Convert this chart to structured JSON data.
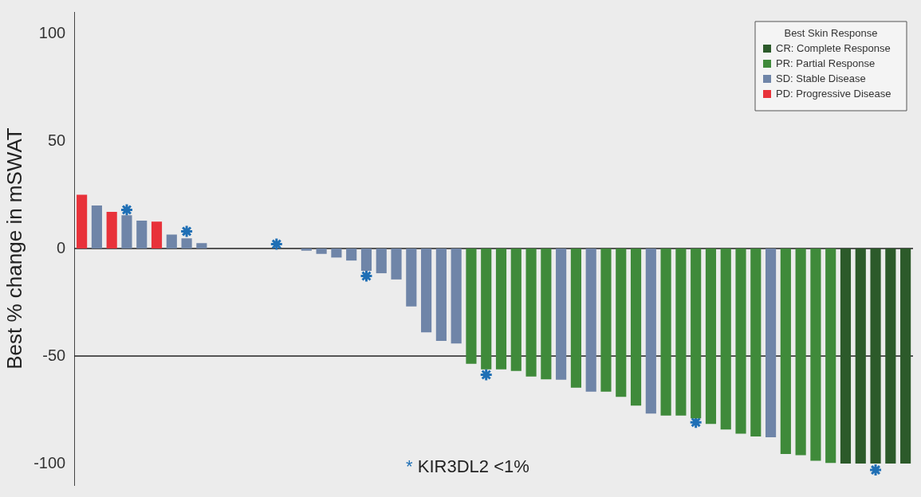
{
  "chart_data": {
    "type": "bar",
    "ylabel": "Best % change in mSWAT",
    "legend_title": "Best Skin Response",
    "legend": "top right",
    "categories": [
      null,
      null,
      null,
      null,
      null,
      null,
      null,
      null,
      null,
      null,
      null,
      null,
      null,
      null,
      null,
      null,
      null,
      null,
      null,
      null,
      null,
      null,
      null,
      null,
      null,
      null,
      null,
      null,
      null,
      null,
      null,
      null,
      null,
      null,
      null,
      null,
      null,
      null,
      null,
      null,
      null,
      null,
      null,
      null,
      null,
      null,
      null,
      null,
      null,
      null,
      null,
      null,
      null,
      null,
      null,
      null
    ],
    "series": [
      {
        "name": "CR: Complete Response",
        "color": "#2c5a2a",
        "values": [
          null,
          null,
          null,
          null,
          null,
          null,
          null,
          null,
          null,
          null,
          null,
          null,
          null,
          null,
          null,
          null,
          null,
          null,
          null,
          null,
          null,
          null,
          null,
          null,
          null,
          null,
          null,
          null,
          null,
          null,
          null,
          null,
          null,
          null,
          null,
          null,
          null,
          null,
          null,
          null,
          null,
          null,
          null,
          null,
          null,
          null,
          null,
          null,
          null,
          null,
          null,
          -100,
          -100,
          -100,
          -100,
          -100
        ]
      },
      {
        "name": "PR: Partial Response",
        "color": "#3f8a3a",
        "values": [
          null,
          null,
          null,
          null,
          null,
          null,
          null,
          null,
          null,
          null,
          null,
          null,
          null,
          null,
          null,
          null,
          null,
          null,
          null,
          null,
          null,
          null,
          null,
          null,
          null,
          null,
          -53.6,
          -56.2,
          -56.2,
          -56.9,
          -59.5,
          -60.8,
          null,
          -64.7,
          null,
          -66.6,
          -69,
          -73.1,
          null,
          -77.7,
          -77.7,
          -79,
          -81.6,
          -84.2,
          -86.1,
          -87.4,
          null,
          -95.6,
          -96.1,
          -98.7,
          -99.7,
          null,
          null,
          null,
          null,
          null
        ]
      },
      {
        "name": "SD: Stable Disease",
        "color": "#6f85a8",
        "values": [
          null,
          20,
          null,
          15.5,
          13,
          null,
          6.5,
          4.7,
          2.5,
          0,
          0,
          0,
          0,
          0,
          0,
          -1,
          -2.5,
          -4.2,
          -5.6,
          -10.4,
          -11.5,
          -14.4,
          -26.9,
          -39,
          -43,
          -44.2,
          null,
          null,
          null,
          null,
          null,
          null,
          -61,
          null,
          -66.6,
          null,
          null,
          null,
          -76.8,
          null,
          null,
          null,
          null,
          null,
          null,
          null,
          -87.8,
          null,
          null,
          null,
          null,
          null,
          null,
          null,
          null,
          null
        ]
      },
      {
        "name": "PD: Progressive Disease",
        "color": "#e8323a",
        "values": [
          25,
          null,
          17,
          null,
          null,
          12.5,
          null,
          null,
          null,
          null,
          null,
          null,
          null,
          null,
          null,
          null,
          null,
          null,
          null,
          null,
          null,
          null,
          null,
          null,
          null,
          null,
          null,
          null,
          null,
          null,
          null,
          null,
          null,
          null,
          null,
          null,
          null,
          null,
          null,
          null,
          null,
          null,
          null,
          null,
          null,
          null,
          null,
          null,
          null,
          null,
          null,
          null,
          null,
          null,
          null,
          null
        ]
      },
      {
        "type": "scatter",
        "marker": "cross",
        "color": "#1f6fb5",
        "values": [
          null,
          null,
          null,
          18,
          null,
          null,
          null,
          8,
          null,
          null,
          null,
          null,
          null,
          2,
          null,
          null,
          null,
          null,
          null,
          -12.8,
          null,
          null,
          null,
          null,
          null,
          null,
          null,
          -58.7,
          null,
          null,
          null,
          null,
          null,
          null,
          null,
          null,
          null,
          null,
          null,
          null,
          null,
          -80.8,
          null,
          null,
          null,
          null,
          null,
          null,
          null,
          null,
          null,
          null,
          null,
          -103,
          null,
          null
        ]
      }
    ],
    "ylim": [
      -110,
      110
    ],
    "yticks": [
      -100,
      -50,
      0,
      50,
      100
    ],
    "tick_labels": "y",
    "grid": false,
    "annotations": [
      "* KIR3DL2 <1%"
    ],
    "ref_lines": [
      {
        "axis": "y",
        "value": 0,
        "color": "#222222"
      },
      {
        "axis": "y",
        "value": -50,
        "color": "#222222"
      }
    ]
  }
}
